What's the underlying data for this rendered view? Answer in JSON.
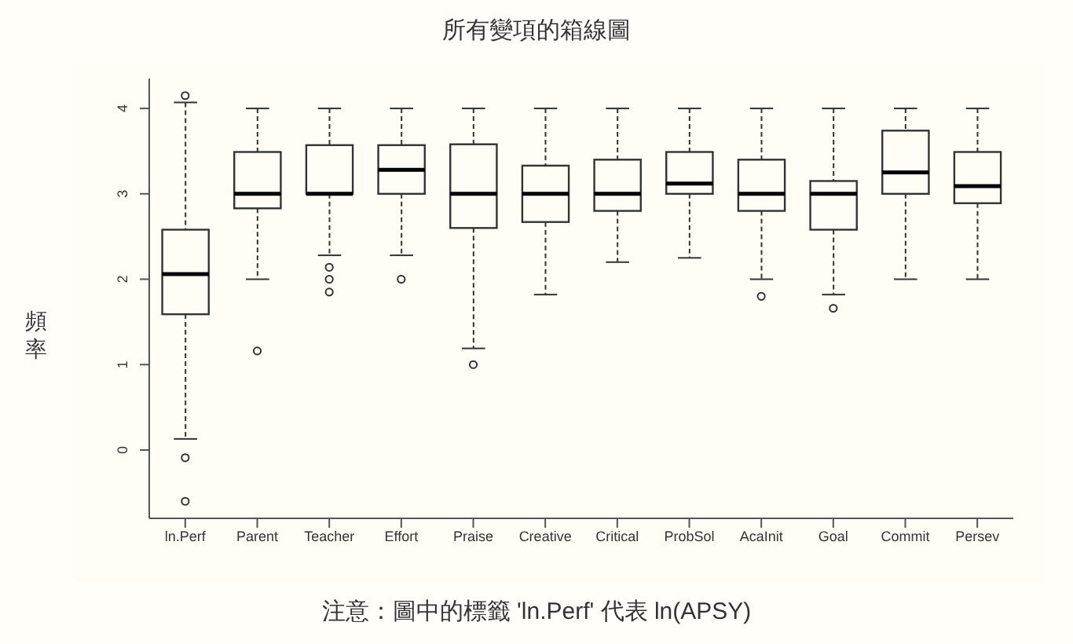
{
  "chart_data": {
    "type": "box",
    "title": "所有變項的箱線圖",
    "ylabel": "頻率",
    "annotations": [
      "注意：圖中的標籤 'ln.Perf' 代表 ln(APSY)"
    ],
    "categories": [
      "ln.Perf",
      "Parent",
      "Teacher",
      "Effort",
      "Praise",
      "Creative",
      "Critical",
      "ProbSol",
      "AcaInit",
      "Goal",
      "Commit",
      "Persev"
    ],
    "color": "#333333",
    "boxes": [
      {
        "low": 0.13,
        "q1": 1.59,
        "median": 2.06,
        "q3": 2.58,
        "high": 4.07,
        "outliers": [
          4.15,
          -0.09,
          -0.6
        ]
      },
      {
        "low": 2,
        "q1": 2.83,
        "median": 3,
        "q3": 3.49,
        "high": 4,
        "outliers": [
          1.16
        ]
      },
      {
        "low": 2.28,
        "q1": 3,
        "median": 3,
        "q3": 3.57,
        "high": 4,
        "outliers": [
          2.14,
          2,
          1.85
        ]
      },
      {
        "low": 2.28,
        "q1": 3,
        "median": 3.28,
        "q3": 3.57,
        "high": 4,
        "outliers": [
          2
        ]
      },
      {
        "low": 1.19,
        "q1": 2.6,
        "median": 3,
        "q3": 3.58,
        "high": 4,
        "outliers": [
          1
        ]
      },
      {
        "low": 1.82,
        "q1": 2.67,
        "median": 3,
        "q3": 3.33,
        "high": 4
      },
      {
        "low": 2.2,
        "q1": 2.8,
        "median": 3,
        "q3": 3.4,
        "high": 4
      },
      {
        "low": 2.25,
        "q1": 3,
        "median": 3.12,
        "q3": 3.49,
        "high": 4
      },
      {
        "low": 2,
        "q1": 2.8,
        "median": 3,
        "q3": 3.4,
        "high": 4,
        "outliers": [
          1.8
        ]
      },
      {
        "low": 1.82,
        "q1": 2.58,
        "median": 3,
        "q3": 3.15,
        "high": 4,
        "outliers": [
          1.66
        ]
      },
      {
        "low": 2,
        "q1": 3,
        "median": 3.25,
        "q3": 3.74,
        "high": 4
      },
      {
        "low": 2,
        "q1": 2.89,
        "median": 3.09,
        "q3": 3.49,
        "high": 4
      }
    ],
    "ylim": [
      -0.8,
      4.35
    ],
    "yticks": [
      0,
      1,
      2,
      3,
      4
    ],
    "grid": false
  }
}
